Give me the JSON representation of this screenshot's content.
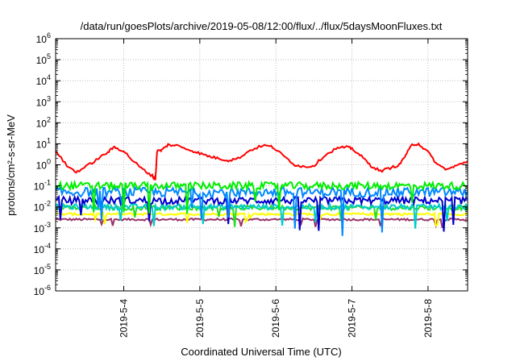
{
  "chart_data": {
    "type": "line",
    "title": "/data/run/goesPlots/archive/2019-05-08/12:00/flux/../flux/5daysMoonFluxes.txt",
    "xlabel": "Coordinated Universal Time (UTC)",
    "ylabel": "protons/cm²-s-sr-MeV",
    "y_scale": "log",
    "ylim": [
      1e-06,
      1000000.0
    ],
    "xlim": [
      "2019-05-03 02:30",
      "2019-05-08 12:30"
    ],
    "grid": true,
    "legend": "none",
    "y_ticks": [
      {
        "value": 1e-06,
        "label": "10",
        "exp": "-6"
      },
      {
        "value": 1e-05,
        "label": "10",
        "exp": "-5"
      },
      {
        "value": 0.0001,
        "label": "10",
        "exp": "-4"
      },
      {
        "value": 0.001,
        "label": "10",
        "exp": "-3"
      },
      {
        "value": 0.01,
        "label": "10",
        "exp": "-2"
      },
      {
        "value": 0.1,
        "label": "10",
        "exp": "-1"
      },
      {
        "value": 1,
        "label": "10",
        "exp": "0"
      },
      {
        "value": 10,
        "label": "10",
        "exp": "1"
      },
      {
        "value": 100,
        "label": "10",
        "exp": "2"
      },
      {
        "value": 1000,
        "label": "10",
        "exp": "3"
      },
      {
        "value": 10000,
        "label": "10",
        "exp": "4"
      },
      {
        "value": 100000,
        "label": "10",
        "exp": "5"
      },
      {
        "value": 1000000,
        "label": "10",
        "exp": "6"
      }
    ],
    "x_ticks": [
      "2019-5-4",
      "2019-5-5",
      "2019-5-6",
      "2019-5-7",
      "2019-5-8"
    ],
    "series": [
      {
        "color": "#ff0000",
        "points": [
          [
            "2019-05-03 02:30",
            5
          ],
          [
            "2019-05-03 06:00",
            0.9
          ],
          [
            "2019-05-03 09:00",
            0.45
          ],
          [
            "2019-05-03 12:00",
            0.8
          ],
          [
            "2019-05-03 16:00",
            2.0
          ],
          [
            "2019-05-03 19:00",
            4.0
          ],
          [
            "2019-05-03 21:00",
            7.0
          ],
          [
            "2019-05-04 00:00",
            4.5
          ],
          [
            "2019-05-04 03:00",
            1.5
          ],
          [
            "2019-05-04 06:00",
            0.6
          ],
          [
            "2019-05-04 09:00",
            0.3
          ],
          [
            "2019-05-04 10:00",
            0.2
          ],
          [
            "2019-05-04 10:30",
            4.5
          ],
          [
            "2019-05-04 12:00",
            5.0
          ],
          [
            "2019-05-04 14:00",
            9.0
          ],
          [
            "2019-05-04 17:00",
            8.0
          ],
          [
            "2019-05-04 21:00",
            5.0
          ],
          [
            "2019-05-05 00:00",
            3.5
          ],
          [
            "2019-05-05 03:00",
            2.5
          ],
          [
            "2019-05-05 06:00",
            2.0
          ],
          [
            "2019-05-05 09:00",
            1.6
          ],
          [
            "2019-05-05 12:00",
            2.0
          ],
          [
            "2019-05-05 16:00",
            5.0
          ],
          [
            "2019-05-05 20:00",
            8.5
          ],
          [
            "2019-05-05 23:00",
            7.0
          ],
          [
            "2019-05-06 02:00",
            3.0
          ],
          [
            "2019-05-06 06:00",
            1.0
          ],
          [
            "2019-05-06 09:00",
            0.8
          ],
          [
            "2019-05-06 12:00",
            0.9
          ],
          [
            "2019-05-06 15:00",
            2.5
          ],
          [
            "2019-05-06 19:00",
            6.0
          ],
          [
            "2019-05-06 22:00",
            7.0
          ],
          [
            "2019-05-07 00:00",
            6.0
          ],
          [
            "2019-05-07 03:00",
            2.5
          ],
          [
            "2019-05-07 06:00",
            0.9
          ],
          [
            "2019-05-07 09:00",
            0.5
          ],
          [
            "2019-05-07 12:00",
            0.7
          ],
          [
            "2019-05-07 15:00",
            1.0
          ],
          [
            "2019-05-07 17:00",
            3.0
          ],
          [
            "2019-05-07 19:00",
            9.0
          ],
          [
            "2019-05-07 21:00",
            10.0
          ],
          [
            "2019-05-08 00:00",
            4.0
          ],
          [
            "2019-05-08 03:00",
            1.0
          ],
          [
            "2019-05-08 06:00",
            0.6
          ],
          [
            "2019-05-08 09:00",
            0.9
          ],
          [
            "2019-05-08 12:30",
            1.5
          ]
        ]
      },
      {
        "color": "#00ee00",
        "level": 0.1,
        "spread": 0.35
      },
      {
        "color": "#0088ff",
        "level": 0.05,
        "spread": 0.45
      },
      {
        "color": "#0000cc",
        "level": 0.02,
        "spread": 0.35
      },
      {
        "color": "#00cccc",
        "level": 0.01,
        "spread": 0.25
      },
      {
        "color": "#22dd22",
        "level": 0.009,
        "spread": 0.22
      },
      {
        "color": "#ffff00",
        "level": 0.0045,
        "spread": 0.12
      },
      {
        "color": "#993366",
        "level": 0.0025,
        "spread": 0.1
      }
    ]
  }
}
